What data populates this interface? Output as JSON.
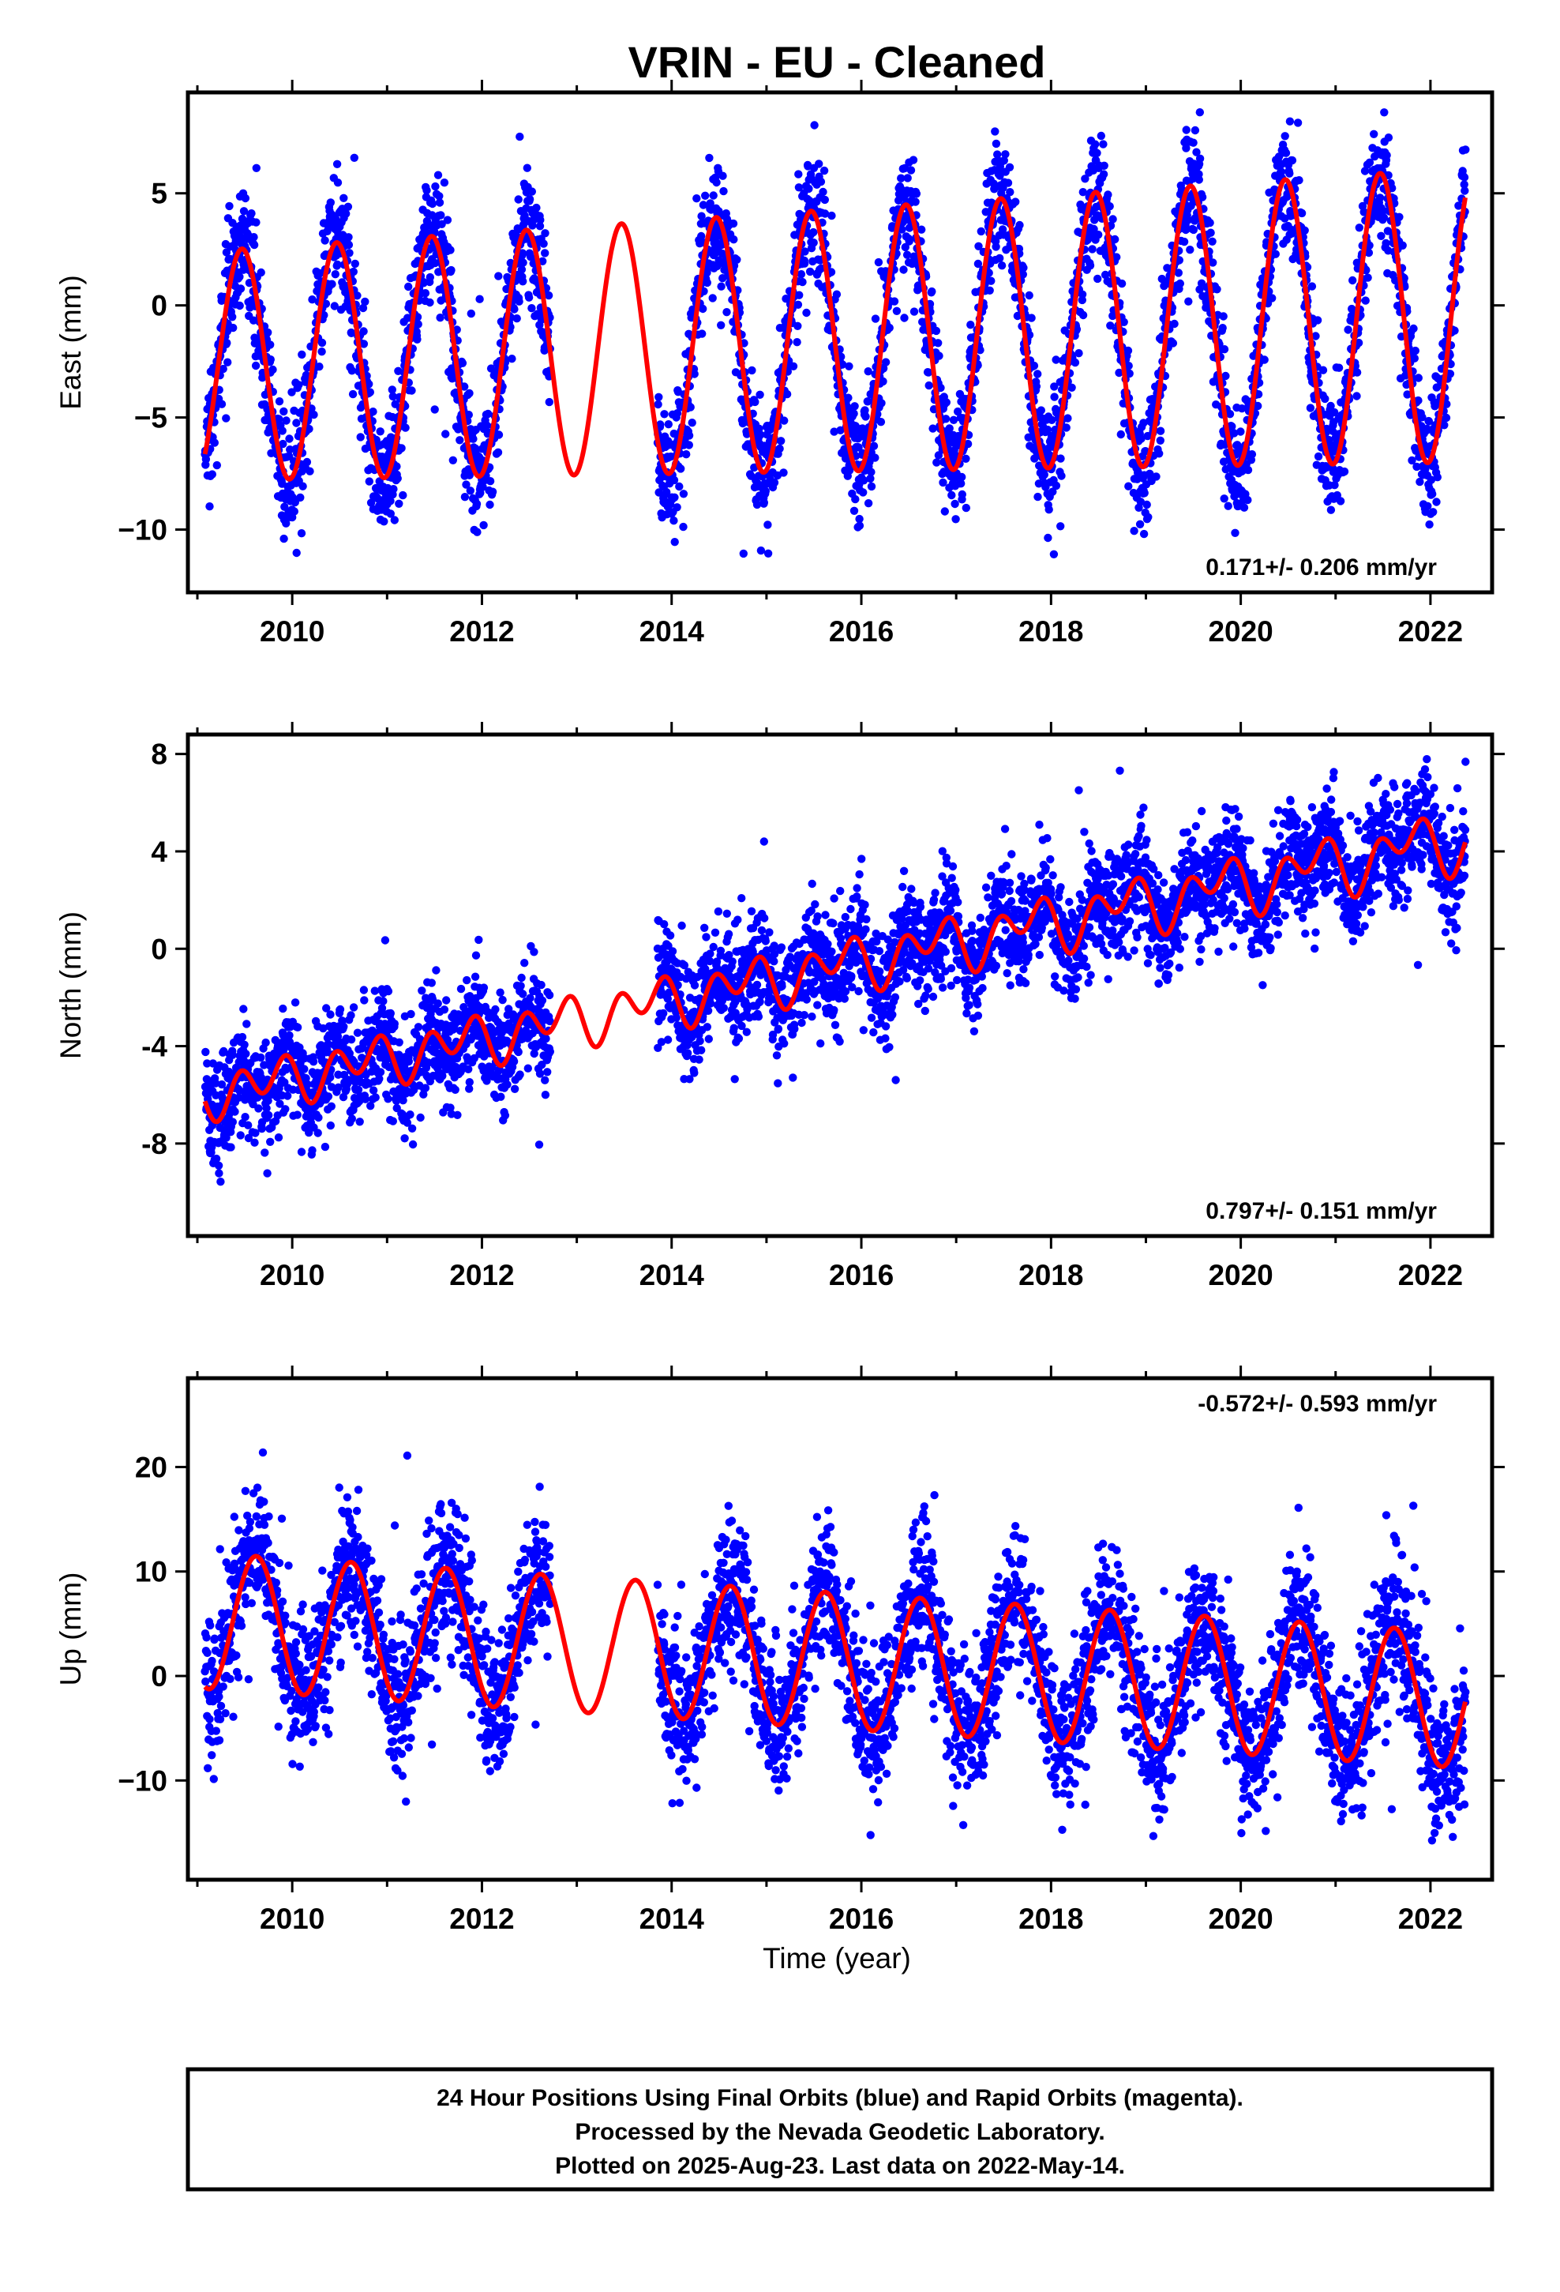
{
  "title": "VRIN  - EU - Cleaned",
  "colors": {
    "observations": "#0000ff",
    "model": "#ff0000",
    "frame": "#000000"
  },
  "chart_data": [
    {
      "type": "scatter",
      "id": "east",
      "ylabel": "East (mm)",
      "xlabel": "",
      "xlim": [
        2008.9,
        2022.65
      ],
      "ylim": [
        -12.8,
        9.5
      ],
      "xticks": [
        2010,
        2012,
        2014,
        2016,
        2018,
        2020,
        2022
      ],
      "yticks": [
        -10,
        -5,
        0,
        5
      ],
      "ytick_labels": [
        "−10",
        "−5",
        "0",
        "5"
      ],
      "rate_text": "0.171+/- 0.206 mm/yr",
      "rate_position": "bottom-right",
      "data_start": 2009.08,
      "data_end": 2022.37,
      "gaps": [
        [
          2012.72,
          2013.85
        ]
      ],
      "series": [
        {
          "kind": "observations",
          "color": "#0000ff",
          "scatter": 1.4
        },
        {
          "kind": "model",
          "color": "#ff0000",
          "offset": -1.6,
          "trend": 0.171,
          "ref_year": 2015.5,
          "annual_amp": 5.1,
          "annual_peak": 2009.47,
          "amp_growth": 0.11,
          "semi_amp": 0.0,
          "semi_peak": 2009.2
        }
      ]
    },
    {
      "type": "scatter",
      "id": "north",
      "ylabel": "North (mm)",
      "xlabel": "",
      "xlim": [
        2008.9,
        2022.65
      ],
      "ylim": [
        -11.8,
        8.8
      ],
      "xticks": [
        2010,
        2012,
        2014,
        2016,
        2018,
        2020,
        2022
      ],
      "yticks": [
        -8,
        -4,
        0,
        4,
        8
      ],
      "ytick_labels": [
        "-8",
        "-4",
        "0",
        "4",
        "8"
      ],
      "rate_text": "0.797+/- 0.151 mm/yr",
      "rate_position": "bottom-right",
      "data_start": 2009.08,
      "data_end": 2022.37,
      "gaps": [
        [
          2012.72,
          2013.85
        ]
      ],
      "series": [
        {
          "kind": "observations",
          "color": "#0000ff",
          "scatter": 1.1
        },
        {
          "kind": "model",
          "color": "#ff0000",
          "offset": -0.9,
          "trend": 0.797,
          "ref_year": 2015.5,
          "annual_amp": 0.4,
          "annual_peak": 2009.75,
          "amp_growth": 0.03,
          "semi_amp": 0.8,
          "semi_peak": 2009.45
        }
      ]
    },
    {
      "type": "scatter",
      "id": "up",
      "ylabel": "Up (mm)",
      "xlabel": "Time (year)",
      "xlim": [
        2008.9,
        2022.65
      ],
      "ylim": [
        -19.5,
        28.5
      ],
      "xticks": [
        2010,
        2012,
        2014,
        2016,
        2018,
        2020,
        2022
      ],
      "yticks": [
        -10,
        0,
        10,
        20
      ],
      "ytick_labels": [
        "−10",
        "0",
        "10",
        "20"
      ],
      "rate_text": "-0.572+/- 0.593 mm/yr",
      "rate_position": "top-right",
      "data_start": 2009.08,
      "data_end": 2022.37,
      "gaps": [
        [
          2012.72,
          2013.85
        ]
      ],
      "series": [
        {
          "kind": "observations",
          "color": "#0000ff",
          "scatter": 3.4
        },
        {
          "kind": "model",
          "color": "#ff0000",
          "offset": 1.6,
          "trend": -0.572,
          "ref_year": 2015.5,
          "annual_amp": 6.5,
          "annual_peak": 2009.62,
          "amp_growth": 0.0,
          "semi_amp": 0.0,
          "semi_peak": 2009.3
        }
      ]
    }
  ],
  "footer": {
    "line1": "24 Hour Positions Using Final Orbits (blue) and Rapid Orbits (magenta).",
    "line2": "Processed by the Nevada Geodetic Laboratory.",
    "line3": "Plotted on 2025-Aug-23. Last data on 2022-May-14."
  }
}
